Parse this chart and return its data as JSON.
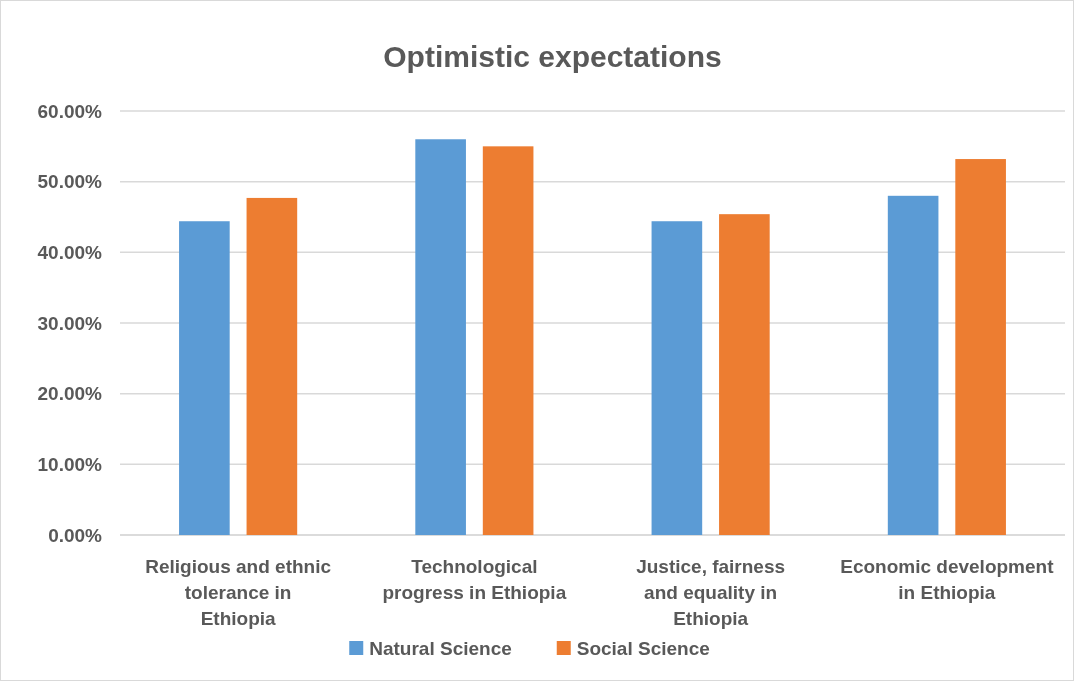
{
  "chart_data": {
    "type": "bar",
    "title": "Optimistic expectations",
    "categories": [
      "Religious and ethnic tolerance in Ethiopia",
      "Technological progress in Ethiopia",
      "Justice, fairness and equality in Ethiopia",
      "Economic development in Ethiopia"
    ],
    "series": [
      {
        "name": "Natural Science",
        "color": "#5b9bd5",
        "values": [
          44.4,
          56.0,
          44.4,
          48.0
        ]
      },
      {
        "name": "Social Science",
        "color": "#ed7d31",
        "values": [
          47.7,
          55.0,
          45.4,
          53.2
        ]
      }
    ],
    "ylim": [
      0,
      60
    ],
    "yticks": [
      {
        "value": 0,
        "label": "0.00%"
      },
      {
        "value": 10,
        "label": "10.00%"
      },
      {
        "value": 20,
        "label": "20.00%"
      },
      {
        "value": 30,
        "label": "30.00%"
      },
      {
        "value": 40,
        "label": "40.00%"
      },
      {
        "value": 50,
        "label": "50.00%"
      },
      {
        "value": 60,
        "label": "60.00%"
      }
    ],
    "grid": "y",
    "legend": "bottom"
  }
}
